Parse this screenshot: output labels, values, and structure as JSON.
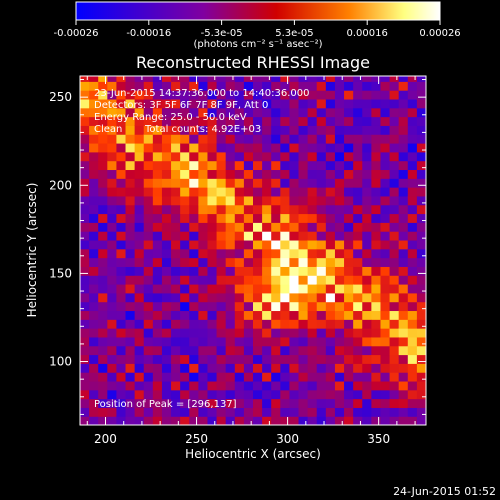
{
  "chart_data": {
    "type": "heatmap",
    "title": "Reconstructed RHESSI Image",
    "xlabel": "Heliocentric X (arcsec)",
    "ylabel": "Heliocentric Y (arcsec)",
    "xlim": [
      186,
      376
    ],
    "ylim": [
      64,
      262
    ],
    "x_ticks": [
      200,
      250,
      300,
      350
    ],
    "y_ticks": [
      100,
      150,
      200,
      250
    ],
    "colorbar": {
      "ticks": [
        "-0.00026",
        "-0.00016",
        "-5.3e-05",
        "5.3e-05",
        "0.00016",
        "0.00026"
      ],
      "unit_label": "(photons cm⁻² s⁻¹ asec⁻²)",
      "range": [
        -0.00026,
        0.00026
      ],
      "colormap": [
        "#0000ff",
        "#8000a0",
        "#d00000",
        "#ff8000",
        "#ffff80",
        "#ffffff"
      ]
    },
    "annotations": {
      "time": "23-Jun-2015 14:37:36.000 to 14:40:36.000",
      "detectors": "Detectors: 3F 5F 6F 7F 8F 9F, Att 0",
      "energy": "Energy Range: 25.0 - 50.0 keV",
      "method": "Clean",
      "counts": "Total counts: 4.92E+03",
      "peak": "Position of Peak = [296,137]"
    },
    "peak_position": [
      296,
      137
    ],
    "grid": false
  },
  "footer_date": "24-Jun-2015 01:52"
}
